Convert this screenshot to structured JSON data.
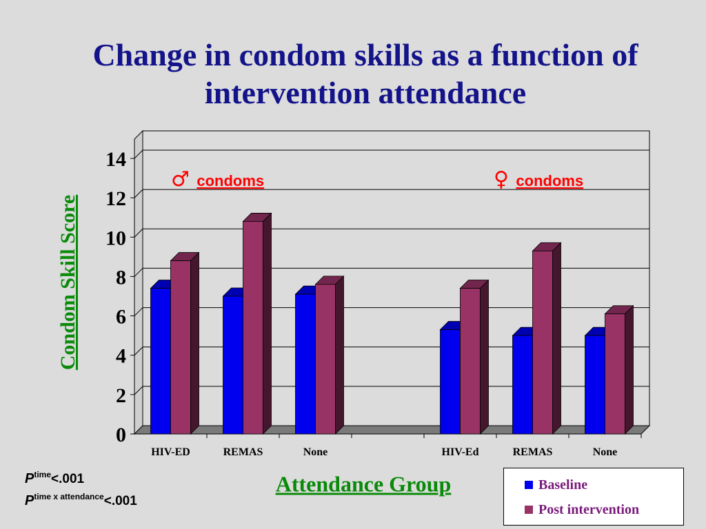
{
  "title_line1": "Change in condom skills as a function of",
  "title_line2": "intervention attendance",
  "notes": {
    "p1": "P",
    "p1_sup": "time",
    "p1_rest": "<.001",
    "p2": "P",
    "p2_sup": "time x attendance",
    "p2_rest": "<.001"
  },
  "chart_data": {
    "type": "bar",
    "title": "Change in condom skills as a function of intervention attendance",
    "xlabel": "Attendance Group",
    "ylabel": "Condom Skill Score",
    "ylim": [
      0,
      14
    ],
    "yticks": [
      "0",
      "2",
      "4",
      "6",
      "8",
      "10",
      "12",
      "14"
    ],
    "grid": true,
    "legend_position": "bottom-right",
    "categories": [
      "HIV-ED",
      "REMAS",
      "None",
      "",
      "HIV-Ed",
      "REMAS",
      "None"
    ],
    "series": [
      {
        "name": "Baseline",
        "color": "#0000ee",
        "values": [
          7.4,
          7.0,
          7.1,
          null,
          5.3,
          5.0,
          5.0
        ]
      },
      {
        "name": "Post intervention",
        "color": "#993366",
        "values": [
          8.8,
          10.8,
          7.6,
          null,
          7.4,
          9.3,
          6.1
        ]
      }
    ],
    "annotations": [
      {
        "symbol": "♂",
        "text": "condoms",
        "color": "#ff0000"
      },
      {
        "symbol": "♀",
        "text": "condoms",
        "color": "#ff0000"
      }
    ]
  }
}
